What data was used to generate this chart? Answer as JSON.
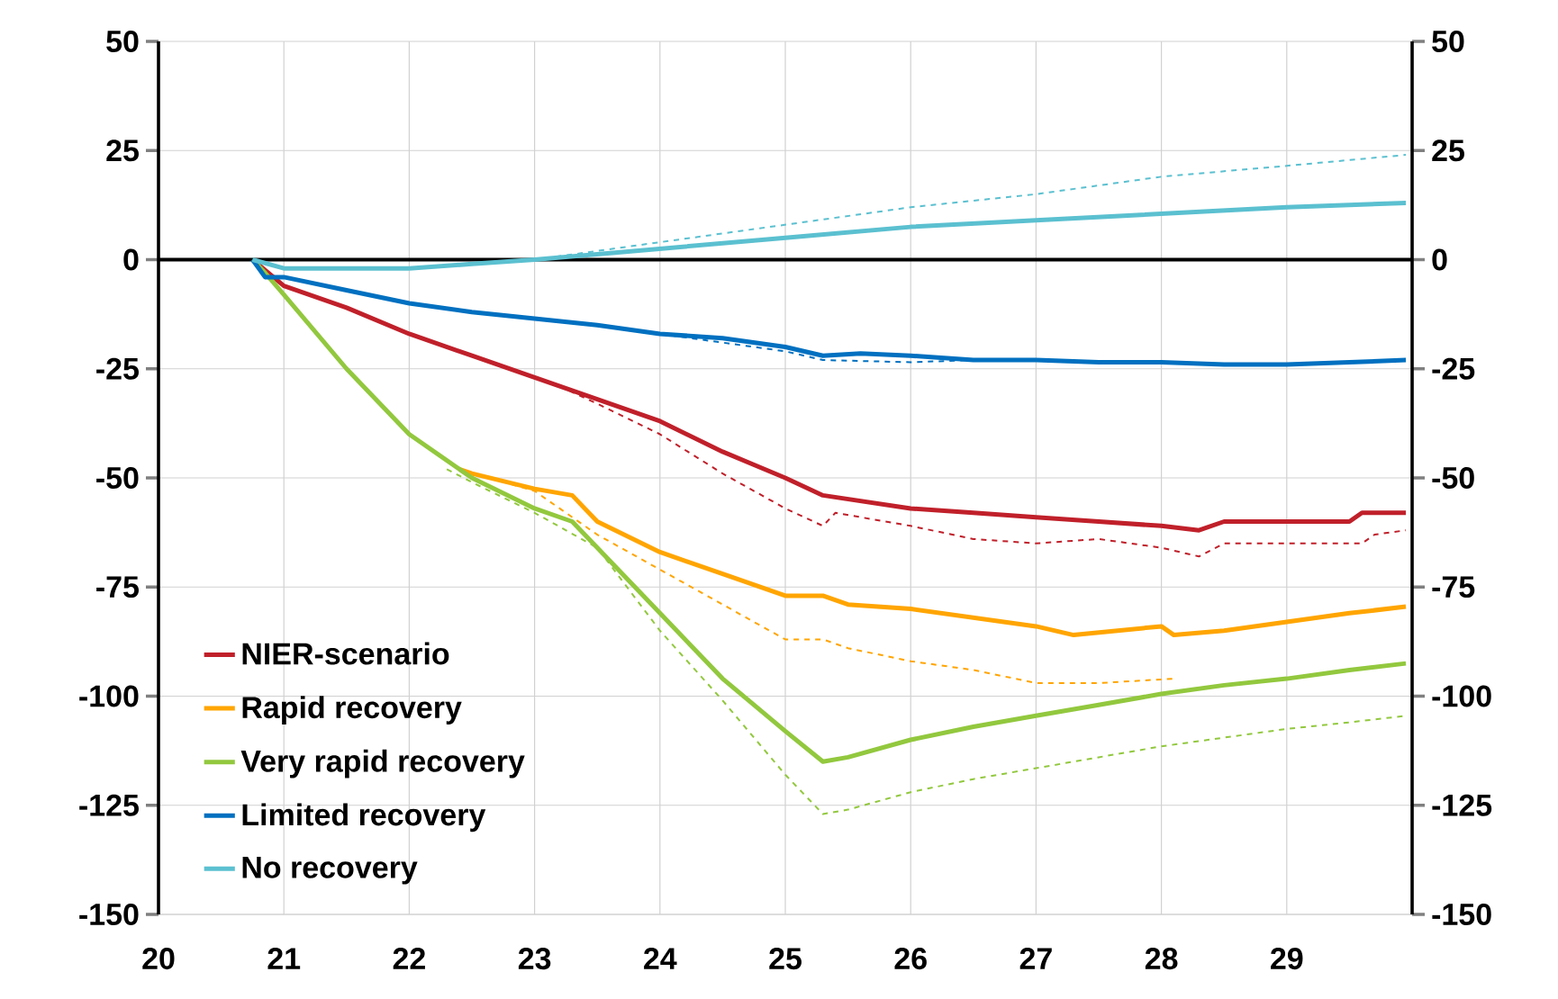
{
  "chart_data": {
    "type": "line",
    "xlim": [
      20,
      30
    ],
    "xticks": [
      20,
      21,
      22,
      23,
      24,
      25,
      26,
      27,
      28,
      29
    ],
    "ylim": [
      -150,
      50
    ],
    "yticks": [
      -150,
      -125,
      -100,
      -75,
      -50,
      -25,
      0,
      25,
      50
    ],
    "y2lim": [
      -150,
      50
    ],
    "y2ticks": [
      -150,
      -125,
      -100,
      -75,
      -50,
      -25,
      0,
      25,
      50
    ],
    "grid": true,
    "legend": "bottom left",
    "marker": "none",
    "ref_lines": [
      {
        "axis": "y",
        "value": 0,
        "color": "#000000"
      }
    ],
    "series": [
      {
        "name": "NIER-scenario",
        "color": "#c0202a",
        "line_style": "solid",
        "x": [
          20.75,
          21,
          21.5,
          22,
          22.5,
          23,
          23.5,
          24,
          24.5,
          25,
          25.3,
          26,
          26.5,
          27,
          27.5,
          28,
          28.3,
          28.5,
          29,
          29.5,
          29.6,
          29.95
        ],
        "values": [
          0,
          -6,
          -11,
          -17,
          -22,
          -27,
          -32,
          -37,
          -44,
          -50,
          -54,
          -57,
          -58,
          -59,
          -60,
          -61,
          -62,
          -60,
          -60,
          -60,
          -58,
          -58
        ]
      },
      {
        "name": "Rapid recovery",
        "color": "#ffa500",
        "line_style": "solid",
        "x": [
          22.4,
          22.5,
          23,
          23.3,
          23.5,
          24,
          24.5,
          25,
          25.3,
          25.5,
          26,
          26.5,
          27,
          27.3,
          28,
          28.1,
          28.5,
          29,
          29.5,
          29.95
        ],
        "values": [
          -48,
          -49,
          -52.5,
          -54,
          -60,
          -67,
          -72,
          -77,
          -77,
          -79,
          -80,
          -82,
          -84,
          -86,
          -84,
          -86,
          -85,
          -83,
          -81,
          -79.5
        ]
      },
      {
        "name": "Very rapid recovery",
        "color": "#92c83e",
        "line_style": "solid",
        "x": [
          20.75,
          20.85,
          21,
          21.5,
          22,
          22.5,
          23,
          23.3,
          24,
          24.5,
          25,
          25.3,
          25.5,
          26,
          26.5,
          27,
          27.5,
          28,
          28.5,
          29,
          29.5,
          29.95
        ],
        "values": [
          0,
          -3,
          -8,
          -25,
          -40,
          -50,
          -57,
          -60,
          -81,
          -96,
          -108,
          -115,
          -114,
          -110,
          -107,
          -104.5,
          -102,
          -99.5,
          -97.5,
          -96,
          -94,
          -92.5
        ]
      },
      {
        "name": "Limited recovery",
        "color": "#0070c0",
        "line_style": "solid",
        "x": [
          20.75,
          20.85,
          21,
          21.5,
          22,
          22.5,
          23,
          23.5,
          24,
          24.5,
          25,
          25.3,
          25.6,
          26,
          26.5,
          27,
          27.5,
          28,
          28.5,
          29,
          29.5,
          29.95
        ],
        "values": [
          0,
          -4,
          -4,
          -7,
          -10,
          -12,
          -13.5,
          -15,
          -17,
          -18,
          -20,
          -22,
          -21.5,
          -22,
          -23,
          -23,
          -23.5,
          -23.5,
          -24,
          -24,
          -23.5,
          -23
        ]
      },
      {
        "name": "No recovery",
        "color": "#5bc0d0",
        "line_style": "solid",
        "x": [
          20.75,
          21,
          22,
          22.5,
          23,
          24,
          25,
          26,
          27,
          28,
          29,
          29.95
        ],
        "values": [
          0,
          -2,
          -2,
          -1,
          0,
          2.5,
          5,
          7.5,
          9,
          10.5,
          12,
          13
        ]
      },
      {
        "color": "#c0202a",
        "line_style": "dashed",
        "x": [
          23.2,
          23.5,
          24,
          24.5,
          25,
          25.3,
          25.4,
          26,
          26.5,
          27,
          27.5,
          28,
          28.3,
          28.5,
          29,
          29.6,
          29.7,
          29.95
        ],
        "values": [
          -29,
          -33,
          -40,
          -49,
          -57,
          -61,
          -58,
          -61,
          -64,
          -65,
          -64,
          -66,
          -68,
          -65,
          -65,
          -65,
          -63,
          -62
        ]
      },
      {
        "color": "#ffa500",
        "line_style": "dashed",
        "x": [
          22.4,
          23,
          23.5,
          24,
          24.5,
          25,
          25.3,
          25.5,
          26,
          26.5,
          27,
          27.5,
          28.1
        ],
        "values": [
          -48,
          -53,
          -63,
          -71,
          -79,
          -87,
          -87,
          -89,
          -92,
          -94,
          -97,
          -97,
          -96
        ]
      },
      {
        "color": "#92c83e",
        "line_style": "dashed",
        "x": [
          22.3,
          22.5,
          23,
          23.5,
          24,
          24.5,
          25,
          25.3,
          25.5,
          26,
          26.5,
          27,
          27.5,
          28,
          28.5,
          29,
          29.5,
          29.95
        ],
        "values": [
          -48,
          -51,
          -58,
          -66,
          -85,
          -101,
          -118,
          -127,
          -126,
          -122,
          -119,
          -116.5,
          -114,
          -111.5,
          -109.5,
          -107.5,
          -106,
          -104.5
        ]
      },
      {
        "color": "#0070c0",
        "line_style": "dashed",
        "x": [
          24,
          24.5,
          25,
          25.3,
          26,
          26.5,
          27
        ],
        "values": [
          -17,
          -19,
          -21,
          -23,
          -23.5,
          -23,
          -23
        ]
      },
      {
        "color": "#5bc0d0",
        "line_style": "dashed",
        "x": [
          23,
          24,
          25,
          26,
          27,
          28,
          29,
          29.95
        ],
        "values": [
          0,
          4,
          8,
          12,
          15,
          19,
          21.5,
          24
        ]
      }
    ]
  }
}
